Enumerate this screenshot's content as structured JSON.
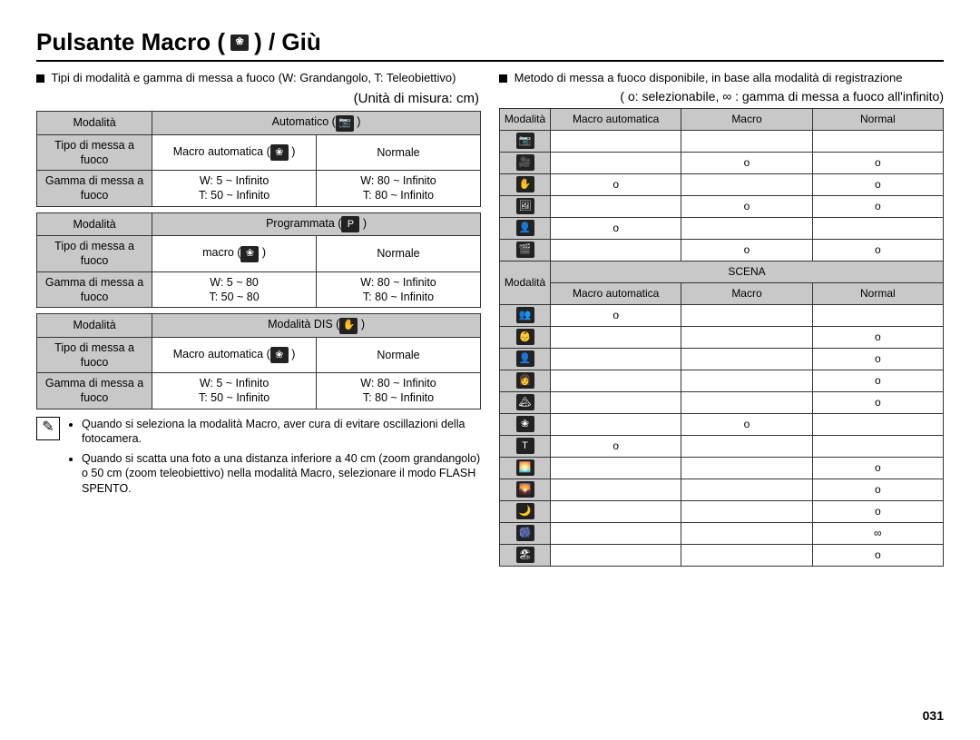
{
  "page": {
    "title_prefix": "Pulsante Macro (",
    "title_suffix": ") / Giù",
    "title_icon_glyph": "❀",
    "pagenum": "031"
  },
  "left": {
    "intro": "Tipi di modalità e gamma di messa a fuoco (W: Grandangolo, T: Teleobiettivo)",
    "unit_label": "(Unità di misura: cm)",
    "tables": [
      {
        "mode_label": "Modalità",
        "mode_value": "Automatico (",
        "mode_icon": "📷",
        "mode_after": " )",
        "focus_type_label": "Tipo di messa a fuoco",
        "col1": "Macro automatica (",
        "col1_icon": "❀",
        "col1_after": " )",
        "col2": "Normale",
        "range_label": "Gamma di messa a fuoco",
        "r1a": "W: 5 ~ Infinito",
        "r1b": "T: 50 ~ Infinito",
        "r2a": "W: 80 ~ Infinito",
        "r2b": "T: 80 ~ Infinito"
      },
      {
        "mode_label": "Modalità",
        "mode_value": "Programmata (",
        "mode_icon": "P",
        "mode_after": " )",
        "focus_type_label": "Tipo di messa a fuoco",
        "col1": "macro (",
        "col1_icon": "❀",
        "col1_after": " )",
        "col2": "Normale",
        "range_label": "Gamma di messa a fuoco",
        "r1a": "W: 5 ~ 80",
        "r1b": "T: 50 ~ 80",
        "r2a": "W: 80 ~ Infinito",
        "r2b": "T: 80 ~ Infinito"
      },
      {
        "mode_label": "Modalità",
        "mode_value": "Modalità DIS (",
        "mode_icon": "✋",
        "mode_after": " )",
        "focus_type_label": "Tipo di messa a fuoco",
        "col1": "Macro automatica (",
        "col1_icon": "❀",
        "col1_after": " )",
        "col2": "Normale",
        "range_label": "Gamma di messa a fuoco",
        "r1a": "W: 5 ~ Infinito",
        "r1b": "T: 50 ~ Infinito",
        "r2a": "W: 80 ~ Infinito",
        "r2b": "T: 80 ~ Infinito"
      }
    ],
    "note_icon": "✎",
    "notes": [
      "Quando si seleziona la modalità Macro, aver cura di evitare oscillazioni della fotocamera.",
      "Quando si scatta una foto a una distanza inferiore a 40 cm (zoom grandangolo) o 50 cm (zoom teleobiettivo) nella modalità Macro, selezionare il modo FLASH SPENTO."
    ]
  },
  "right": {
    "intro": "Metodo di messa a fuoco disponibile, in base alla modalità di registrazione",
    "legend": "( o: selezionabile, ∞ : gamma di messa a fuoco all'infinito)",
    "mode_label": "Modalità",
    "headers": [
      "Macro automatica",
      "Macro",
      "Normal"
    ],
    "rows1": [
      {
        "icon": "📷",
        "cells": [
          "",
          "",
          ""
        ]
      },
      {
        "icon": "🎥",
        "cells": [
          "",
          "o",
          "o"
        ]
      },
      {
        "icon": "✋",
        "cells": [
          "o",
          "",
          "o"
        ]
      },
      {
        "icon": "🖼",
        "cells": [
          "",
          "o",
          "o"
        ]
      },
      {
        "icon": "👤",
        "cells": [
          "o",
          "",
          ""
        ]
      },
      {
        "icon": "🎬",
        "cells": [
          "",
          "o",
          "o"
        ]
      }
    ],
    "scena_label": "SCENA",
    "rows2": [
      {
        "icon": "👥",
        "cells": [
          "o",
          "",
          ""
        ]
      },
      {
        "icon": "👶",
        "cells": [
          "",
          "",
          "o"
        ]
      },
      {
        "icon": "👤",
        "cells": [
          "",
          "",
          "o"
        ]
      },
      {
        "icon": "👩",
        "cells": [
          "",
          "",
          "o"
        ]
      },
      {
        "icon": "🏔",
        "cells": [
          "",
          "",
          "o"
        ]
      },
      {
        "icon": "❀",
        "cells": [
          "",
          "o",
          ""
        ]
      },
      {
        "icon": "T",
        "cells": [
          "o",
          "",
          ""
        ]
      },
      {
        "icon": "🌅",
        "cells": [
          "",
          "",
          "o"
        ]
      },
      {
        "icon": "🌄",
        "cells": [
          "",
          "",
          "o"
        ]
      },
      {
        "icon": "🌙",
        "cells": [
          "",
          "",
          "o"
        ]
      },
      {
        "icon": "🎆",
        "cells": [
          "",
          "",
          "∞"
        ]
      },
      {
        "icon": "🏖",
        "cells": [
          "",
          "",
          "o"
        ]
      }
    ]
  },
  "style": {
    "header_bg": "#c8c8c8",
    "border_color": "#000000",
    "icon_bg": "#222222",
    "icon_fg": "#ffffff"
  }
}
